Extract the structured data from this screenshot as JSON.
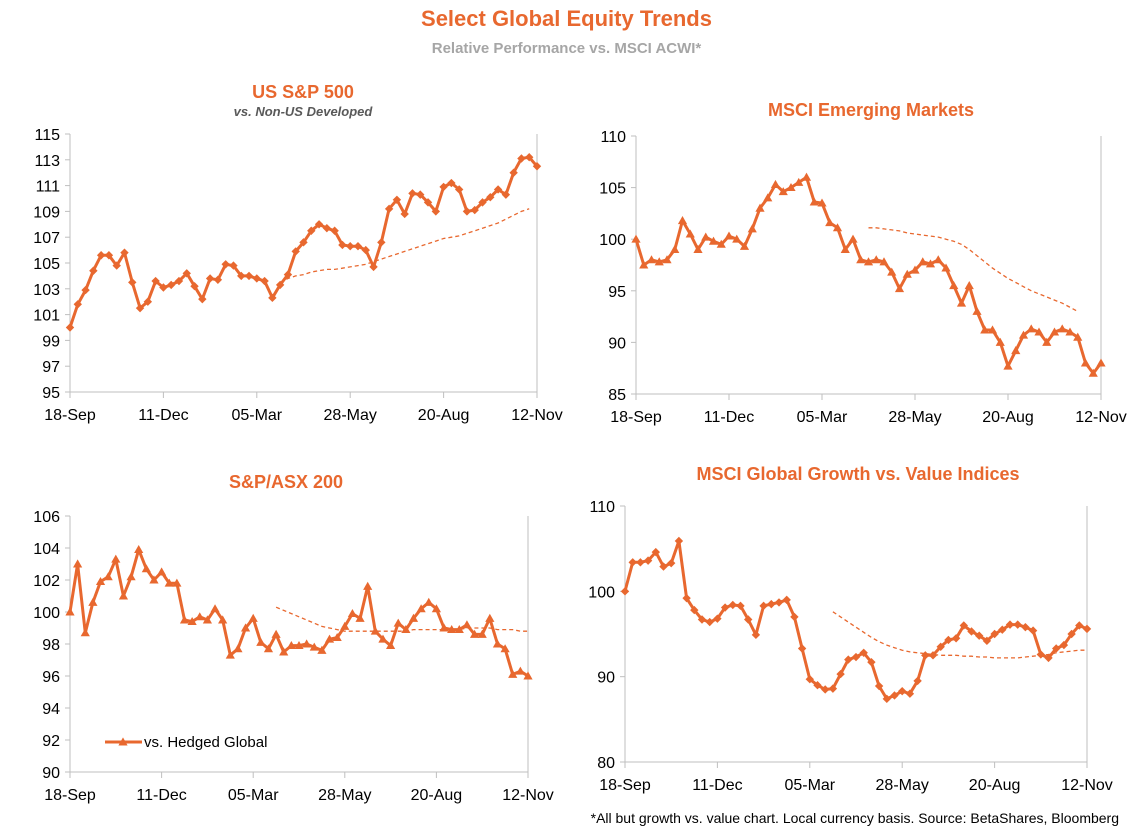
{
  "header": {
    "title": "Select Global Equity Trends",
    "subtitle": "Relative Performance vs. MSCI ACWI*"
  },
  "footnote": "*All but growth vs. value chart. Local currency basis.  Source: BetaShares, Bloomberg",
  "colors": {
    "series": "#e8682f",
    "axis": "#bfbfbf",
    "text": "#000000"
  },
  "chart_data": [
    {
      "type": "line",
      "title": "US S&P 500",
      "subtitle": "vs. Non-US Developed",
      "marker": "diamond",
      "ylim": [
        95,
        115
      ],
      "yticks": [
        95,
        97,
        99,
        101,
        103,
        105,
        107,
        109,
        111,
        113,
        115
      ],
      "xtick_labels": [
        "18-Sep",
        "11-Dec",
        "05-Mar",
        "28-May",
        "20-Aug",
        "12-Nov"
      ],
      "grid": false,
      "legend": "none",
      "series": [
        {
          "style": "solid-markers",
          "values": [
            100.0,
            101.8,
            102.9,
            104.4,
            105.6,
            105.6,
            104.8,
            105.8,
            103.5,
            101.5,
            102.0,
            103.6,
            103.1,
            103.3,
            103.6,
            104.2,
            103.2,
            102.2,
            103.8,
            103.7,
            104.9,
            104.8,
            104.0,
            104.0,
            103.8,
            103.6,
            102.3,
            103.3,
            104.1,
            105.9,
            106.6,
            107.5,
            108.0,
            107.7,
            107.5,
            106.4,
            106.3,
            106.3,
            106.0,
            104.7,
            106.6,
            109.2,
            109.9,
            108.8,
            110.4,
            110.3,
            109.7,
            109.0,
            110.9,
            111.2,
            110.7,
            109.0,
            109.1,
            109.7,
            110.1,
            110.7,
            110.3,
            112.0,
            113.1,
            113.2,
            112.5
          ]
        },
        {
          "style": "dashed",
          "start_index": 27,
          "values": [
            103.5,
            103.8,
            104.0,
            104.1,
            104.3,
            104.4,
            104.5,
            104.5,
            104.6,
            104.7,
            104.8,
            104.9,
            105.1,
            105.3,
            105.5,
            105.7,
            105.9,
            106.1,
            106.3,
            106.5,
            106.7,
            106.9,
            107.0,
            107.1,
            107.3,
            107.5,
            107.7,
            107.9,
            108.1,
            108.4,
            108.7,
            109.0,
            109.2
          ]
        }
      ]
    },
    {
      "type": "line",
      "title": "MSCI Emerging Markets",
      "marker": "triangle",
      "ylim": [
        85,
        110
      ],
      "yticks": [
        85,
        90,
        95,
        100,
        105,
        110
      ],
      "xtick_labels": [
        "18-Sep",
        "11-Dec",
        "05-Mar",
        "28-May",
        "20-Aug",
        "12-Nov"
      ],
      "grid": false,
      "legend": "none",
      "series": [
        {
          "style": "solid-markers",
          "values": [
            100.0,
            97.5,
            98.0,
            97.8,
            98.0,
            99.0,
            101.8,
            100.5,
            99.0,
            100.2,
            99.8,
            99.5,
            100.3,
            100.0,
            99.3,
            101.0,
            103.0,
            104.0,
            105.3,
            104.6,
            105.0,
            105.5,
            106.0,
            103.6,
            103.5,
            101.6,
            101.1,
            99.0,
            100.0,
            98.0,
            97.8,
            98.0,
            97.8,
            96.8,
            95.2,
            96.6,
            97.0,
            97.8,
            97.6,
            98.0,
            97.2,
            95.5,
            93.8,
            95.5,
            93.0,
            91.2,
            91.2,
            90.0,
            87.7,
            89.2,
            90.7,
            91.3,
            91.0,
            90.0,
            91.0,
            91.3,
            91.0,
            90.5,
            88.0,
            87.0,
            88.0
          ]
        },
        {
          "style": "dashed",
          "start_index": 30,
          "values": [
            101.1,
            101.1,
            101.0,
            100.9,
            100.8,
            100.6,
            100.5,
            100.4,
            100.3,
            100.2,
            100.0,
            99.8,
            99.5,
            99.0,
            98.4,
            97.8,
            97.2,
            96.7,
            96.2,
            95.8,
            95.4,
            95.0,
            94.7,
            94.4,
            94.1,
            93.8,
            93.4,
            93.0
          ]
        }
      ]
    },
    {
      "type": "line",
      "title": "S&P/ASX 200",
      "marker": "triangle",
      "ylim": [
        90,
        106
      ],
      "yticks": [
        90,
        92,
        94,
        96,
        98,
        100,
        102,
        104,
        106
      ],
      "xtick_labels": [
        "18-Sep",
        "11-Dec",
        "05-Mar",
        "28-May",
        "20-Aug",
        "12-Nov"
      ],
      "grid": false,
      "legend": "bottom-left",
      "legend_label": "vs. Hedged Global",
      "series": [
        {
          "style": "solid-markers",
          "name": "vs. Hedged Global",
          "values": [
            100.0,
            103.0,
            98.7,
            100.6,
            101.9,
            102.2,
            103.3,
            101.0,
            102.2,
            103.9,
            102.7,
            102.0,
            102.5,
            101.8,
            101.8,
            99.5,
            99.4,
            99.7,
            99.5,
            100.2,
            99.5,
            97.3,
            97.7,
            99.0,
            99.6,
            98.1,
            97.7,
            98.6,
            97.5,
            97.9,
            97.9,
            98.0,
            97.8,
            97.6,
            98.3,
            98.4,
            99.1,
            99.9,
            99.6,
            101.6,
            98.8,
            98.3,
            97.9,
            99.3,
            98.9,
            99.6,
            100.2,
            100.6,
            100.2,
            99.0,
            98.9,
            98.9,
            99.2,
            98.6,
            98.6,
            99.6,
            98.0,
            97.7,
            96.1,
            96.3,
            96.0
          ]
        },
        {
          "style": "dashed",
          "start_index": 27,
          "values": [
            100.3,
            100.1,
            99.9,
            99.7,
            99.5,
            99.3,
            99.1,
            99.0,
            98.9,
            98.8,
            98.8,
            98.8,
            98.8,
            98.8,
            98.8,
            98.8,
            98.8,
            98.8,
            98.9,
            98.9,
            98.9,
            98.9,
            98.9,
            98.9,
            98.9,
            99.0,
            99.0,
            99.0,
            99.0,
            98.9,
            98.9,
            98.9,
            98.8,
            98.8
          ]
        }
      ]
    },
    {
      "type": "line",
      "title": "MSCI Global Growth vs. Value Indices",
      "marker": "diamond",
      "ylim": [
        80,
        110
      ],
      "yticks": [
        80,
        90,
        100,
        110
      ],
      "xtick_labels": [
        "18-Sep",
        "11-Dec",
        "05-Mar",
        "28-May",
        "20-Aug",
        "12-Nov"
      ],
      "grid": false,
      "legend": "none",
      "series": [
        {
          "style": "solid-markers",
          "values": [
            100.0,
            103.4,
            103.4,
            103.6,
            104.6,
            102.9,
            103.3,
            105.9,
            99.2,
            97.8,
            96.7,
            96.4,
            96.8,
            98.1,
            98.4,
            98.3,
            96.7,
            94.9,
            98.3,
            98.5,
            98.7,
            99.0,
            97.0,
            93.3,
            89.7,
            89.0,
            88.5,
            88.6,
            90.3,
            92.0,
            92.3,
            92.8,
            91.7,
            88.9,
            87.4,
            87.8,
            88.3,
            88.0,
            89.5,
            92.5,
            92.5,
            93.5,
            94.3,
            94.5,
            96.0,
            95.3,
            94.8,
            94.2,
            95.0,
            95.5,
            96.1,
            96.1,
            95.8,
            95.4,
            92.6,
            92.2,
            93.3,
            93.7,
            95.0,
            96.0,
            95.6
          ]
        },
        {
          "style": "dashed",
          "start_index": 27,
          "values": [
            97.6,
            97.0,
            96.4,
            95.8,
            95.2,
            94.6,
            94.1,
            93.7,
            93.4,
            93.1,
            92.9,
            92.8,
            92.7,
            92.6,
            92.5,
            92.5,
            92.5,
            92.4,
            92.4,
            92.3,
            92.3,
            92.2,
            92.2,
            92.2,
            92.2,
            92.3,
            92.4,
            92.5,
            92.6,
            92.8,
            92.9,
            93.0,
            93.1,
            93.1
          ]
        }
      ]
    }
  ]
}
